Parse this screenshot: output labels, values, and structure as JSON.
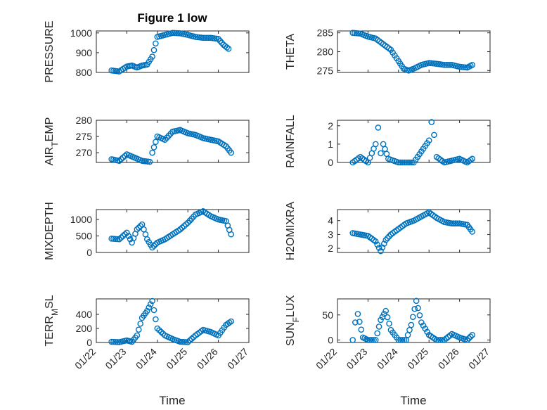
{
  "figure": {
    "title": "Figure 1 low",
    "x_label": "Time",
    "marker_color": "#0072bd"
  },
  "chart_data": [
    {
      "type": "scatter",
      "ylabel": "PRESSURE",
      "ylim": [
        800,
        1010
      ],
      "yticks": [
        800,
        900,
        1000
      ],
      "title": "Figure 1 low",
      "x": [
        "2024-01-22T12:00",
        "2024-01-22T18:00",
        "2024-01-23T00:00",
        "2024-01-23T04:00",
        "2024-01-23T08:00",
        "2024-01-23T12:00",
        "2024-01-23T16:00",
        "2024-01-23T20:00",
        "2024-01-24T00:00",
        "2024-01-24T06:00",
        "2024-01-24T12:00",
        "2024-01-24T18:00",
        "2024-01-25T00:00",
        "2024-01-25T06:00",
        "2024-01-25T12:00",
        "2024-01-25T18:00",
        "2024-01-26T00:00",
        "2024-01-26T04:00",
        "2024-01-26T08:00"
      ],
      "y": [
        810,
        805,
        830,
        835,
        825,
        835,
        840,
        880,
        980,
        990,
        1000,
        998,
        990,
        980,
        975,
        975,
        970,
        940,
        920
      ]
    },
    {
      "type": "scatter",
      "ylabel": "THETA",
      "ylim": [
        274.5,
        285.5
      ],
      "yticks": [
        275,
        280,
        285
      ],
      "x": [
        "2024-01-22T12:00",
        "2024-01-22T18:00",
        "2024-01-23T00:00",
        "2024-01-23T06:00",
        "2024-01-23T12:00",
        "2024-01-23T18:00",
        "2024-01-24T00:00",
        "2024-01-24T04:00",
        "2024-01-24T08:00",
        "2024-01-24T12:00",
        "2024-01-24T18:00",
        "2024-01-25T00:00",
        "2024-01-25T06:00",
        "2024-01-25T12:00",
        "2024-01-25T18:00",
        "2024-01-26T00:00",
        "2024-01-26T06:00",
        "2024-01-26T10:00"
      ],
      "y": [
        285,
        284.8,
        284,
        283.5,
        282,
        280.5,
        277.5,
        275.5,
        275,
        275.5,
        276.5,
        277,
        276.8,
        276.5,
        276.5,
        276,
        275.8,
        276.5
      ]
    },
    {
      "type": "scatter",
      "ylabel": "AIR_TEMP",
      "ylim": [
        267,
        280
      ],
      "yticks": [
        270,
        275,
        280
      ],
      "x": [
        "2024-01-22T12:00",
        "2024-01-22T18:00",
        "2024-01-23T00:00",
        "2024-01-23T06:00",
        "2024-01-23T12:00",
        "2024-01-23T18:00",
        "2024-01-23T20:00",
        "2024-01-24T00:00",
        "2024-01-24T06:00",
        "2024-01-24T12:00",
        "2024-01-24T18:00",
        "2024-01-25T00:00",
        "2024-01-25T06:00",
        "2024-01-25T12:00",
        "2024-01-25T18:00",
        "2024-01-26T00:00",
        "2024-01-26T06:00",
        "2024-01-26T10:00"
      ],
      "y": [
        268,
        267.5,
        269.5,
        268.5,
        267.5,
        267.2,
        270,
        275,
        274,
        276.5,
        277,
        276,
        275.5,
        274.5,
        274,
        273.5,
        272,
        270
      ]
    },
    {
      "type": "scatter",
      "ylabel": "RAINFALL",
      "ylim": [
        0,
        2.3
      ],
      "yticks": [
        0,
        1,
        2
      ],
      "x": [
        "2024-01-22T12:00",
        "2024-01-22T18:00",
        "2024-01-23T00:00",
        "2024-01-23T06:00",
        "2024-01-23T08:00",
        "2024-01-23T10:00",
        "2024-01-23T12:00",
        "2024-01-23T16:00",
        "2024-01-24T00:00",
        "2024-01-24T12:00",
        "2024-01-25T00:00",
        "2024-01-25T02:00",
        "2024-01-25T04:00",
        "2024-01-25T06:00",
        "2024-01-25T12:00",
        "2024-01-26T00:00",
        "2024-01-26T06:00",
        "2024-01-26T10:00"
      ],
      "y": [
        0,
        0.3,
        0,
        1,
        1.9,
        0.5,
        1,
        0.2,
        0,
        0,
        1.2,
        2.2,
        1.5,
        0.3,
        0,
        0.2,
        0,
        0.2
      ]
    },
    {
      "type": "scatter",
      "ylabel": "MIXDEPTH",
      "ylim": [
        0,
        1300
      ],
      "yticks": [
        0,
        500,
        1000
      ],
      "x": [
        "2024-01-22T12:00",
        "2024-01-22T18:00",
        "2024-01-23T00:00",
        "2024-01-23T04:00",
        "2024-01-23T08:00",
        "2024-01-23T12:00",
        "2024-01-23T16:00",
        "2024-01-23T20:00",
        "2024-01-24T00:00",
        "2024-01-24T06:00",
        "2024-01-24T12:00",
        "2024-01-24T18:00",
        "2024-01-25T00:00",
        "2024-01-25T06:00",
        "2024-01-25T12:00",
        "2024-01-25T18:00",
        "2024-01-26T00:00",
        "2024-01-26T06:00",
        "2024-01-26T10:00"
      ],
      "y": [
        420,
        400,
        600,
        300,
        700,
        850,
        400,
        150,
        300,
        400,
        550,
        700,
        900,
        1150,
        1250,
        1100,
        1000,
        950,
        550
      ]
    },
    {
      "type": "scatter",
      "ylabel": "H2OMIXRA",
      "ylim": [
        1.7,
        4.8
      ],
      "yticks": [
        2,
        3,
        4
      ],
      "x": [
        "2024-01-22T12:00",
        "2024-01-22T18:00",
        "2024-01-23T00:00",
        "2024-01-23T06:00",
        "2024-01-23T10:00",
        "2024-01-23T14:00",
        "2024-01-23T18:00",
        "2024-01-24T00:00",
        "2024-01-24T06:00",
        "2024-01-24T12:00",
        "2024-01-24T18:00",
        "2024-01-25T00:00",
        "2024-01-25T06:00",
        "2024-01-25T12:00",
        "2024-01-25T18:00",
        "2024-01-26T00:00",
        "2024-01-26T06:00",
        "2024-01-26T10:00"
      ],
      "y": [
        3.1,
        3.0,
        2.9,
        2.5,
        1.8,
        2.6,
        3.0,
        3.4,
        3.8,
        4.0,
        4.3,
        4.6,
        4.2,
        3.9,
        3.8,
        3.8,
        3.7,
        3.2
      ]
    },
    {
      "type": "scatter",
      "ylabel": "TERR_MSL",
      "ylim": [
        0,
        620
      ],
      "yticks": [
        0,
        200,
        400
      ],
      "x": [
        "2024-01-22T12:00",
        "2024-01-22T18:00",
        "2024-01-23T00:00",
        "2024-01-23T04:00",
        "2024-01-23T08:00",
        "2024-01-23T12:00",
        "2024-01-23T16:00",
        "2024-01-23T20:00",
        "2024-01-24T00:00",
        "2024-01-24T06:00",
        "2024-01-24T12:00",
        "2024-01-24T18:00",
        "2024-01-25T00:00",
        "2024-01-25T06:00",
        "2024-01-25T12:00",
        "2024-01-25T18:00",
        "2024-01-26T00:00",
        "2024-01-26T06:00",
        "2024-01-26T10:00"
      ],
      "y": [
        10,
        5,
        30,
        10,
        100,
        350,
        450,
        590,
        200,
        100,
        50,
        10,
        5,
        100,
        180,
        150,
        100,
        250,
        300
      ]
    },
    {
      "type": "scatter",
      "ylabel": "SUN_FLUX",
      "ylim": [
        -5,
        82
      ],
      "yticks": [
        0,
        50
      ],
      "x": [
        "2024-01-22T12:00",
        "2024-01-22T14:00",
        "2024-01-22T16:00",
        "2024-01-22T20:00",
        "2024-01-23T00:00",
        "2024-01-23T06:00",
        "2024-01-23T10:00",
        "2024-01-23T14:00",
        "2024-01-23T18:00",
        "2024-01-24T00:00",
        "2024-01-24T06:00",
        "2024-01-24T10:00",
        "2024-01-24T14:00",
        "2024-01-24T18:00",
        "2024-01-25T00:00",
        "2024-01-25T06:00",
        "2024-01-25T12:00",
        "2024-01-25T18:00",
        "2024-01-26T00:00",
        "2024-01-26T06:00",
        "2024-01-26T10:00"
      ],
      "y": [
        0,
        35,
        52,
        5,
        0,
        0,
        40,
        58,
        20,
        0,
        0,
        30,
        78,
        35,
        10,
        0,
        0,
        12,
        5,
        0,
        10
      ]
    }
  ],
  "x_ticks": [
    "01/22",
    "01/23",
    "01/24",
    "01/25",
    "01/26",
    "01/27"
  ]
}
